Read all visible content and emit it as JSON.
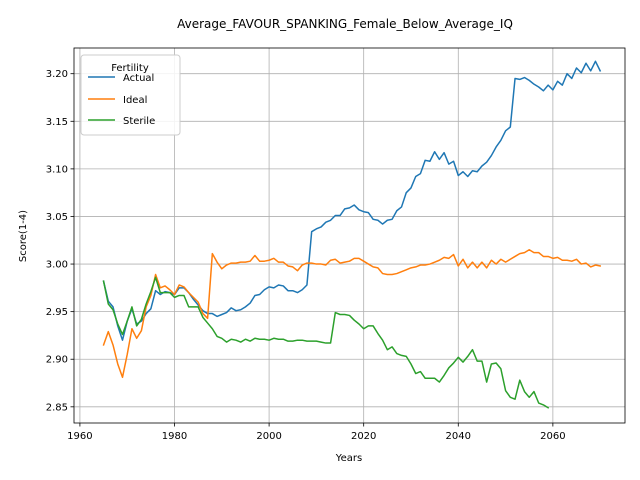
{
  "chart_data": {
    "type": "line",
    "title": "Average_FAVOUR_SPANKING_Female_Below_Average_IQ",
    "xlabel": "Years",
    "ylabel": "Score(1-4)",
    "xlim": [
      1958.75,
      2075.25
    ],
    "ylim": [
      2.833,
      3.227
    ],
    "xticks": [
      1960,
      1980,
      2000,
      2020,
      2040,
      2060
    ],
    "yticks": [
      2.85,
      2.9,
      2.95,
      3.0,
      3.05,
      3.1,
      3.15,
      3.2
    ],
    "grid": true,
    "legend": {
      "title": "Fertility",
      "placement": "top-left"
    },
    "series": [
      {
        "name": "Actual",
        "color": "#1f77b4",
        "x": [
          1965,
          1966,
          1967,
          1968,
          1969,
          1970,
          1971,
          1972,
          1973,
          1974,
          1975,
          1976,
          1977,
          1978,
          1979,
          1980,
          1981,
          1982,
          1983,
          1984,
          1985,
          1986,
          1987,
          1988,
          1989,
          1990,
          1991,
          1992,
          1993,
          1994,
          1995,
          1996,
          1997,
          1998,
          1999,
          2000,
          2001,
          2002,
          2003,
          2004,
          2005,
          2006,
          2007,
          2008,
          2009,
          2010,
          2011,
          2012,
          2013,
          2014,
          2015,
          2016,
          2017,
          2018,
          2019,
          2020,
          2021,
          2022,
          2023,
          2024,
          2025,
          2026,
          2027,
          2028,
          2029,
          2030,
          2031,
          2032,
          2033,
          2034,
          2035,
          2036,
          2037,
          2038,
          2039,
          2040,
          2041,
          2042,
          2043,
          2044,
          2045,
          2046,
          2047,
          2048,
          2049,
          2050,
          2051,
          2052,
          2053,
          2054,
          2055,
          2056,
          2057,
          2058,
          2059,
          2060,
          2061,
          2062,
          2063,
          2064,
          2065,
          2066,
          2067,
          2068,
          2069,
          2070
        ],
        "y": [
          2.982,
          2.961,
          2.955,
          2.935,
          2.92,
          2.94,
          2.953,
          2.937,
          2.94,
          2.948,
          2.953,
          2.972,
          2.968,
          2.971,
          2.97,
          2.968,
          2.975,
          2.975,
          2.97,
          2.963,
          2.957,
          2.951,
          2.948,
          2.948,
          2.945,
          2.947,
          2.949,
          2.954,
          2.951,
          2.952,
          2.955,
          2.959,
          2.967,
          2.968,
          2.973,
          2.976,
          2.975,
          2.978,
          2.977,
          2.972,
          2.972,
          2.97,
          2.973,
          2.978,
          3.034,
          3.037,
          3.039,
          3.044,
          3.046,
          3.051,
          3.051,
          3.058,
          3.059,
          3.062,
          3.057,
          3.055,
          3.054,
          3.047,
          3.046,
          3.042,
          3.046,
          3.047,
          3.056,
          3.06,
          3.075,
          3.08,
          3.092,
          3.095,
          3.109,
          3.108,
          3.118,
          3.11,
          3.117,
          3.105,
          3.108,
          3.093,
          3.097,
          3.092,
          3.098,
          3.097,
          3.103,
          3.107,
          3.114,
          3.123,
          3.13,
          3.14,
          3.144,
          3.195,
          3.194,
          3.196,
          3.193,
          3.189,
          3.186,
          3.182,
          3.188,
          3.183,
          3.192,
          3.188,
          3.2,
          3.195,
          3.206,
          3.201,
          3.211,
          3.203,
          3.213,
          3.203
        ]
      },
      {
        "name": "Ideal",
        "color": "#ff7f0e",
        "x": [
          1965,
          1966,
          1967,
          1968,
          1969,
          1970,
          1971,
          1972,
          1973,
          1974,
          1975,
          1976,
          1977,
          1978,
          1979,
          1980,
          1981,
          1982,
          1983,
          1984,
          1985,
          1986,
          1987,
          1988,
          1989,
          1990,
          1991,
          1992,
          1993,
          1994,
          1995,
          1996,
          1997,
          1998,
          1999,
          2000,
          2001,
          2002,
          2003,
          2004,
          2005,
          2006,
          2007,
          2008,
          2009,
          2010,
          2011,
          2012,
          2013,
          2014,
          2015,
          2016,
          2017,
          2018,
          2019,
          2020,
          2021,
          2022,
          2023,
          2024,
          2025,
          2026,
          2027,
          2028,
          2029,
          2030,
          2031,
          2032,
          2033,
          2034,
          2035,
          2036,
          2037,
          2038,
          2039,
          2040,
          2041,
          2042,
          2043,
          2044,
          2045,
          2046,
          2047,
          2048,
          2049,
          2050,
          2051,
          2052,
          2053,
          2054,
          2055,
          2056,
          2057,
          2058,
          2059,
          2060,
          2061,
          2062,
          2063,
          2064,
          2065,
          2066,
          2067,
          2068,
          2069,
          2070
        ],
        "y": [
          2.915,
          2.929,
          2.915,
          2.895,
          2.881,
          2.905,
          2.932,
          2.922,
          2.93,
          2.955,
          2.967,
          2.989,
          2.975,
          2.977,
          2.973,
          2.968,
          2.978,
          2.976,
          2.97,
          2.965,
          2.96,
          2.948,
          2.943,
          3.011,
          3.002,
          2.995,
          2.999,
          3.001,
          3.001,
          3.002,
          3.002,
          3.003,
          3.009,
          3.003,
          3.003,
          3.004,
          3.006,
          3.002,
          3.002,
          2.998,
          2.997,
          2.993,
          2.999,
          3.001,
          3.001,
          3.0,
          3.0,
          2.999,
          3.004,
          3.005,
          3.001,
          3.002,
          3.003,
          3.006,
          3.006,
          3.003,
          3.0,
          2.997,
          2.996,
          2.99,
          2.989,
          2.989,
          2.99,
          2.992,
          2.994,
          2.996,
          2.997,
          2.999,
          2.999,
          3.0,
          3.002,
          3.004,
          3.007,
          3.006,
          3.01,
          2.998,
          3.005,
          2.996,
          3.002,
          2.996,
          3.002,
          2.996,
          3.004,
          3.0,
          3.005,
          3.002,
          3.005,
          3.008,
          3.011,
          3.012,
          3.015,
          3.012,
          3.012,
          3.008,
          3.008,
          3.006,
          3.007,
          3.004,
          3.004,
          3.003,
          3.005,
          3.0,
          3.001,
          2.997,
          2.999,
          2.998
        ]
      },
      {
        "name": "Sterile",
        "color": "#2ca02c",
        "x": [
          1965,
          1966,
          1967,
          1968,
          1969,
          1970,
          1971,
          1972,
          1973,
          1974,
          1975,
          1976,
          1977,
          1978,
          1979,
          1980,
          1981,
          1982,
          1983,
          1984,
          1985,
          1986,
          1987,
          1988,
          1989,
          1990,
          1991,
          1992,
          1993,
          1994,
          1995,
          1996,
          1997,
          1998,
          1999,
          2000,
          2001,
          2002,
          2003,
          2004,
          2005,
          2006,
          2007,
          2008,
          2009,
          2010,
          2011,
          2012,
          2013,
          2014,
          2015,
          2016,
          2017,
          2018,
          2019,
          2020,
          2021,
          2022,
          2023,
          2024,
          2025,
          2026,
          2027,
          2028,
          2029,
          2030,
          2031,
          2032,
          2033,
          2034,
          2035,
          2036,
          2037,
          2038,
          2039,
          2040,
          2041,
          2042,
          2043,
          2044,
          2045,
          2046,
          2047,
          2048,
          2049,
          2050,
          2051,
          2052,
          2053,
          2054,
          2055,
          2056,
          2057,
          2058,
          2059
        ],
        "y": [
          2.982,
          2.958,
          2.952,
          2.937,
          2.926,
          2.94,
          2.955,
          2.935,
          2.942,
          2.958,
          2.971,
          2.986,
          2.97,
          2.97,
          2.97,
          2.965,
          2.967,
          2.967,
          2.955,
          2.955,
          2.955,
          2.944,
          2.938,
          2.932,
          2.924,
          2.922,
          2.918,
          2.921,
          2.92,
          2.918,
          2.921,
          2.919,
          2.922,
          2.921,
          2.921,
          2.92,
          2.922,
          2.921,
          2.921,
          2.919,
          2.919,
          2.92,
          2.92,
          2.919,
          2.919,
          2.919,
          2.918,
          2.917,
          2.917,
          2.949,
          2.947,
          2.947,
          2.946,
          2.941,
          2.937,
          2.932,
          2.935,
          2.935,
          2.927,
          2.92,
          2.91,
          2.913,
          2.906,
          2.904,
          2.903,
          2.895,
          2.885,
          2.887,
          2.88,
          2.88,
          2.88,
          2.876,
          2.883,
          2.891,
          2.896,
          2.902,
          2.897,
          2.903,
          2.91,
          2.898,
          2.898,
          2.876,
          2.895,
          2.896,
          2.89,
          2.867,
          2.86,
          2.858,
          2.878,
          2.866,
          2.86,
          2.866,
          2.854,
          2.852,
          2.849
        ]
      }
    ]
  }
}
